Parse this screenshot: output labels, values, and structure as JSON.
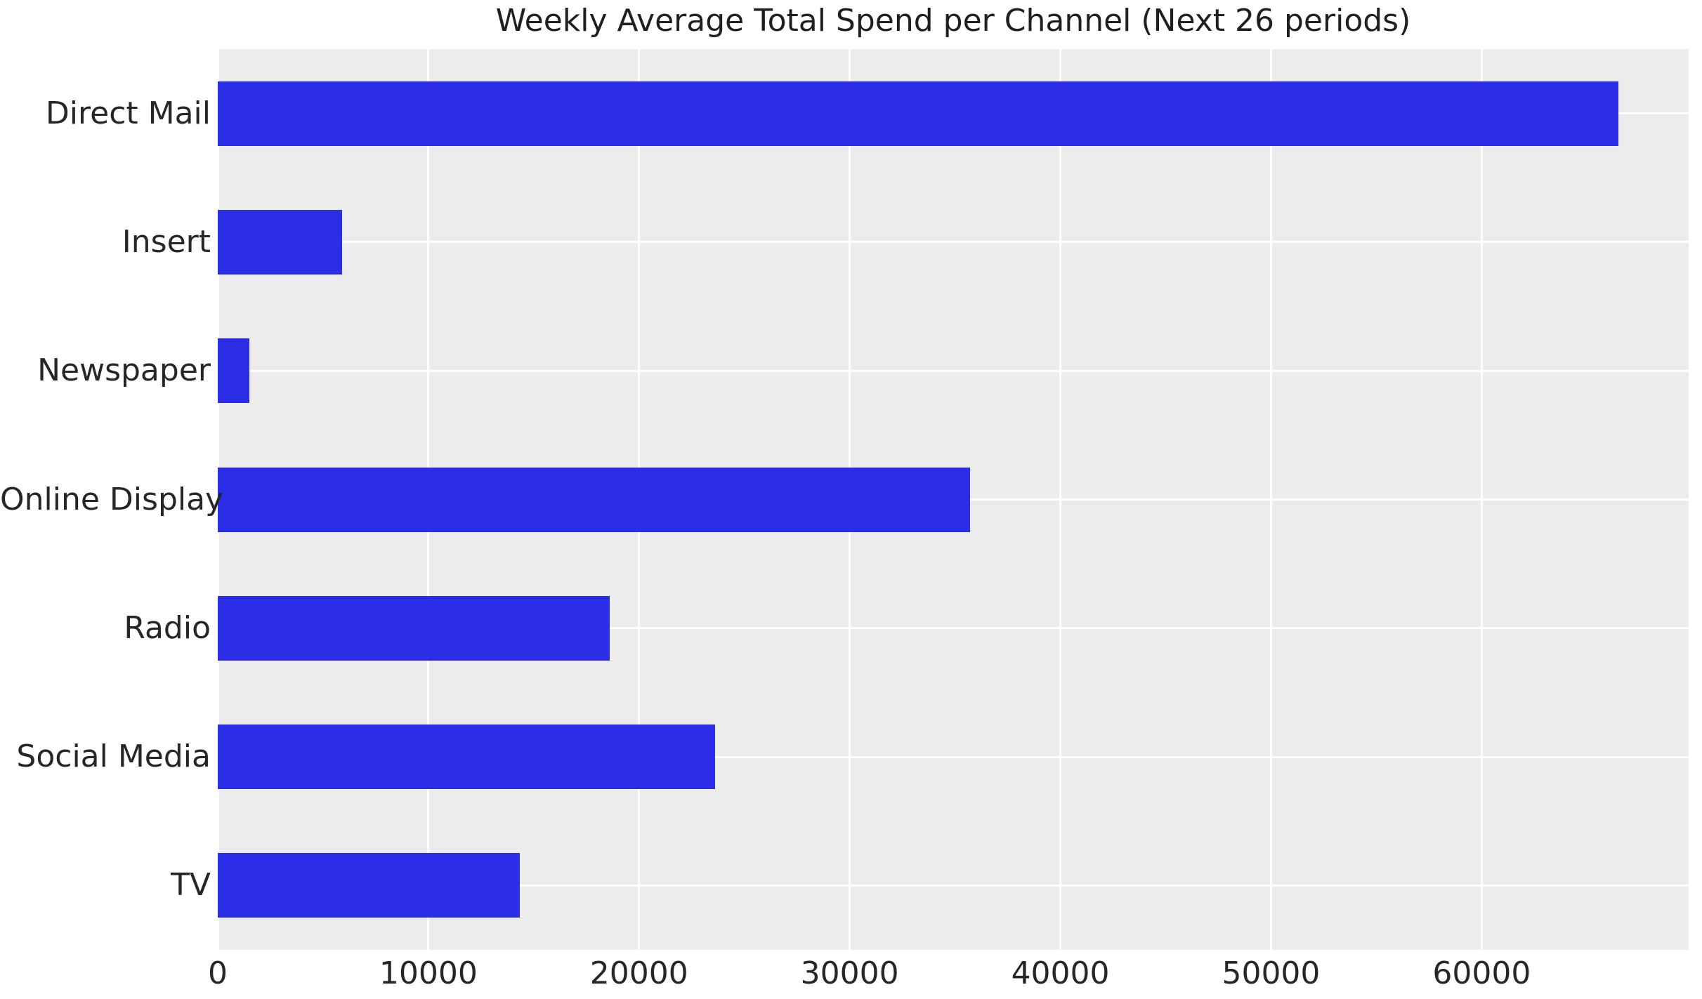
{
  "figure": {
    "title": "Weekly Average Total Spend per Channel (Next 26 periods)"
  },
  "chart_data": {
    "type": "bar",
    "orientation": "horizontal",
    "title": "Weekly Average Total Spend per Channel (Next 26 periods)",
    "categories": [
      "Direct Mail",
      "Insert",
      "Newspaper",
      "Online Display",
      "Radio",
      "Social Media",
      "TV"
    ],
    "values": [
      66500,
      5900,
      1500,
      35700,
      18600,
      23600,
      14350
    ],
    "xlabel": "",
    "ylabel": "",
    "x_ticks": [
      0,
      10000,
      20000,
      30000,
      40000,
      50000,
      60000
    ],
    "x_tick_labels": [
      "0",
      "10000",
      "20000",
      "30000",
      "40000",
      "50000",
      "60000"
    ],
    "xlim": [
      0,
      69825
    ],
    "grid": true,
    "legend": false,
    "bar_height_fraction": 0.5,
    "colors": {
      "bar": "#2b2ee6",
      "plot_background": "#ececec",
      "gridline": "#ffffff",
      "text": "#262626",
      "title_text": "#1f1f1f",
      "figure_background": "#ffffff"
    }
  }
}
